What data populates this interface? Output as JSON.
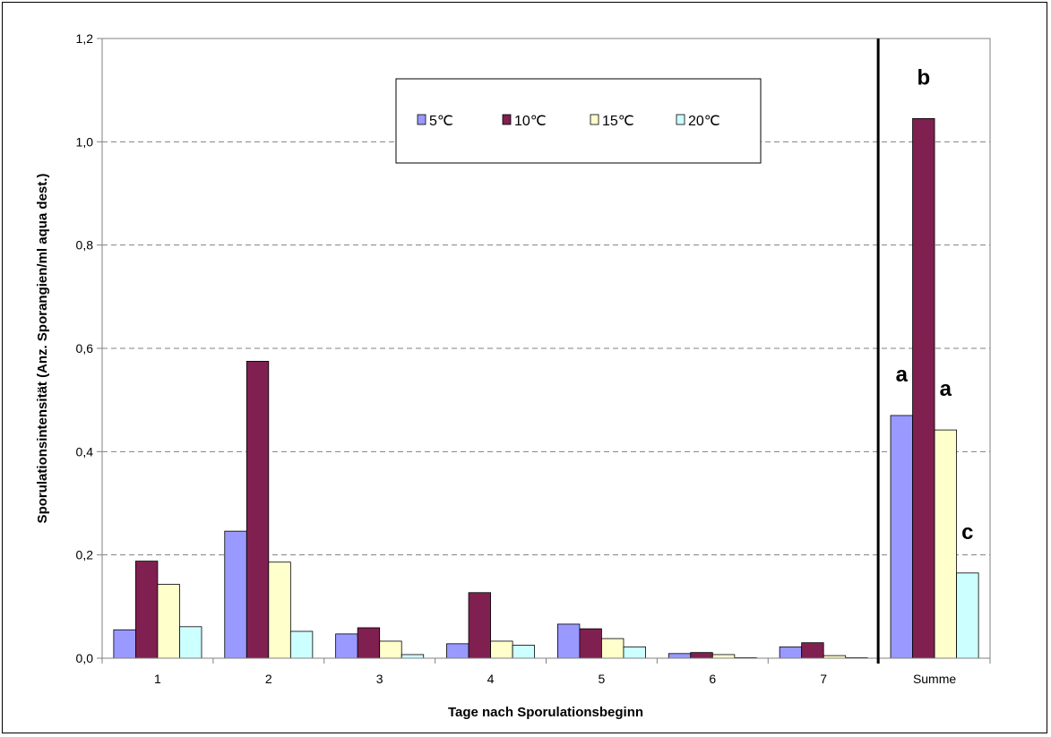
{
  "chart_data": {
    "type": "bar",
    "title": "",
    "xlabel": "Tage nach Sporulationsbeginn",
    "ylabel": "Sporulationsintensität (Anz. Sporangien/ml aqua dest.)",
    "ylim": [
      0,
      1.2
    ],
    "yticks": [
      "0,0",
      "0,2",
      "0,4",
      "0,6",
      "0,8",
      "1,0",
      "1,2"
    ],
    "ytick_values": [
      0,
      0.2,
      0.4,
      0.6,
      0.8,
      1.0,
      1.2
    ],
    "grid": "horizontal dashed",
    "legend_position": "top-center",
    "categories": [
      "1",
      "2",
      "3",
      "4",
      "5",
      "6",
      "7",
      "Summe"
    ],
    "series": [
      {
        "name": "5℃",
        "color": "#9999ff",
        "values": [
          0.055,
          0.246,
          0.047,
          0.028,
          0.066,
          0.009,
          0.022,
          0.47
        ]
      },
      {
        "name": "10℃",
        "color": "#7f2050",
        "values": [
          0.188,
          0.575,
          0.059,
          0.127,
          0.057,
          0.011,
          0.03,
          1.045
        ]
      },
      {
        "name": "15℃",
        "color": "#ffffcc",
        "values": [
          0.143,
          0.186,
          0.033,
          0.033,
          0.038,
          0.007,
          0.005,
          0.442
        ]
      },
      {
        "name": "20℃",
        "color": "#ccffff",
        "values": [
          0.061,
          0.052,
          0.007,
          0.025,
          0.022,
          0.001,
          0.001,
          0.165
        ]
      }
    ],
    "annotations": [
      {
        "text": "a",
        "category": "Summe",
        "series": 0,
        "y": 0.47
      },
      {
        "text": "b",
        "category": "Summe",
        "series": 1,
        "y": 1.045
      },
      {
        "text": "a",
        "category": "Summe",
        "series": 2,
        "y": 0.442
      },
      {
        "text": "c",
        "category": "Summe",
        "series": 3,
        "y": 0.165
      }
    ],
    "separator_before_category": "Summe"
  }
}
